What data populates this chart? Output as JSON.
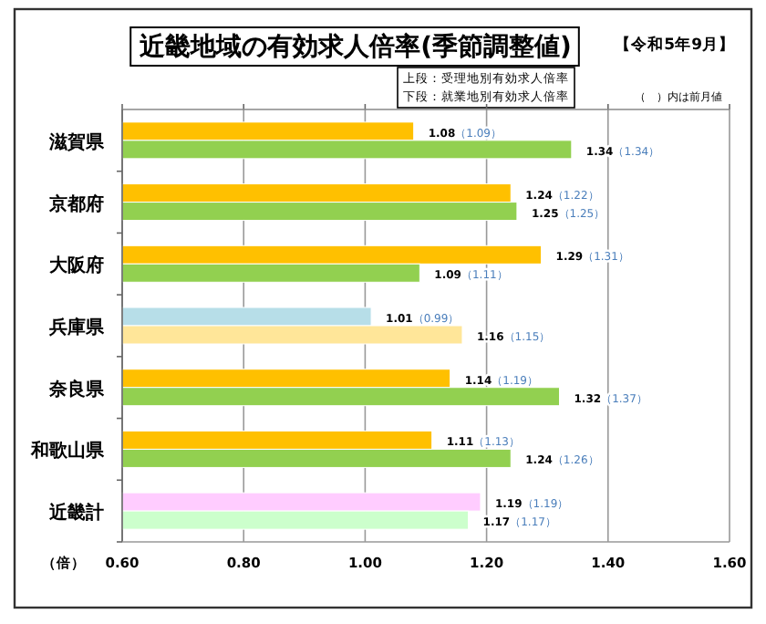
{
  "chart_data": {
    "type": "bar",
    "orientation": "horizontal",
    "title": "近畿地域の有効求人倍率(季節調整値)",
    "subtitle": "【令和5年9月】",
    "xlabel": "（倍）",
    "annotations": [
      "上段：受理地別有効求人倍率",
      "下段：就業地別有効求人倍率",
      "（　）内は前月値"
    ],
    "categories": [
      "滋賀県",
      "京都府",
      "大阪府",
      "兵庫県",
      "奈良県",
      "和歌山県",
      "近畿計"
    ],
    "series": [
      {
        "colors": [
          "#ffc000",
          "#ffc000",
          "#ffc000",
          "#b7dee8",
          "#ffc000",
          "#ffc000",
          "#ffccff"
        ],
        "values": [
          1.08,
          1.24,
          1.29,
          1.01,
          1.14,
          1.11,
          1.19
        ],
        "value_labels": [
          "1.08（1.09）",
          "1.24（1.22）",
          "1.29（1.31）",
          "1.01（0.99）",
          "1.14（1.19）",
          "1.11（1.13）",
          "1.19（1.19）"
        ]
      },
      {
        "colors": [
          "#92d050",
          "#92d050",
          "#92d050",
          "#ffe699",
          "#92d050",
          "#92d050",
          "#ccffcc"
        ],
        "values": [
          1.34,
          1.25,
          1.09,
          1.16,
          1.32,
          1.24,
          1.17
        ],
        "value_labels": [
          "1.34（1.34）",
          "1.25（1.25）",
          "1.09（1.11）",
          "1.16（1.15）",
          "1.32（1.37）",
          "1.24（1.26）",
          "1.17（1.17）"
        ]
      }
    ],
    "xlim": [
      0.6,
      1.6
    ],
    "xticks": [
      {
        "value": 0.6,
        "label": "0.60"
      },
      {
        "value": 0.8,
        "label": "0.80"
      },
      {
        "value": 1.0,
        "label": "1.00"
      },
      {
        "value": 1.2,
        "label": "1.20"
      },
      {
        "value": 1.4,
        "label": "1.40"
      },
      {
        "value": 1.6,
        "label": "1.60"
      }
    ],
    "grid": "x"
  }
}
